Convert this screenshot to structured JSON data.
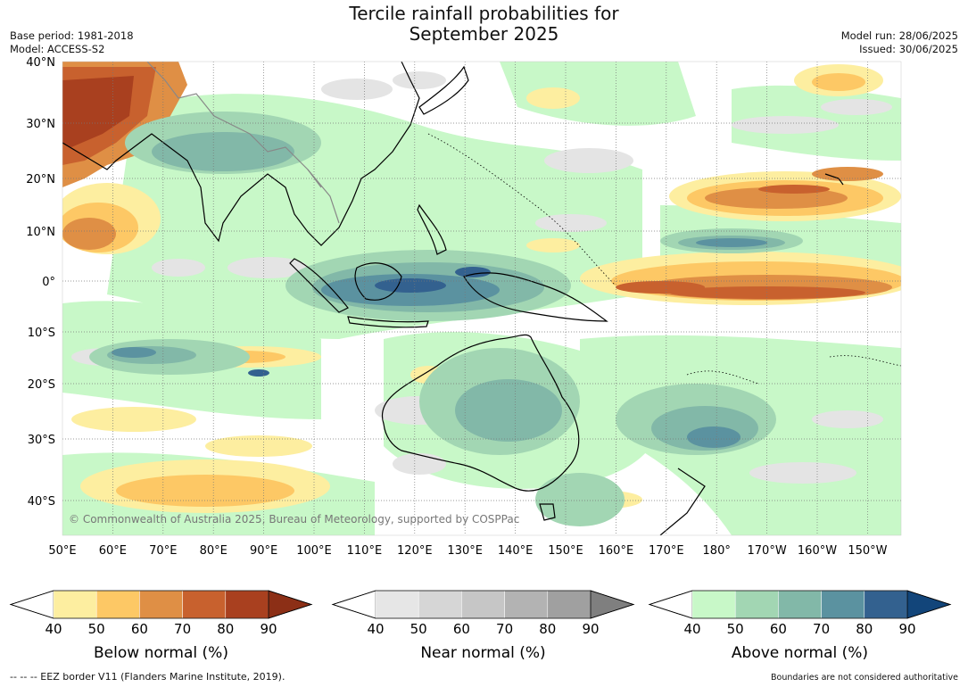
{
  "title_line1": "Tercile rainfall probabilities for",
  "title_line2": "September 2025",
  "base_period": "Base period: 1981-2018",
  "model": "Model: ACCESS-S2",
  "model_run": "Model run: 28/06/2025",
  "issued": "Issued: 30/06/2025",
  "copyright": "© Commonwealth of Australia 2025, Bureau of Meteorology, supported by COSPPac",
  "lat_labels": [
    "40°N",
    "30°N",
    "20°N",
    "10°N",
    "0°",
    "10°S",
    "20°S",
    "30°S",
    "40°S"
  ],
  "lon_labels": [
    "50°E",
    "60°E",
    "70°E",
    "80°E",
    "90°E",
    "100°E",
    "110°E",
    "120°E",
    "130°E",
    "140°E",
    "150°E",
    "160°E",
    "170°E",
    "180°",
    "170°W",
    "160°W",
    "150°W"
  ],
  "colorbars": [
    {
      "title": "Below normal (%)",
      "ticks": [
        "40",
        "50",
        "60",
        "70",
        "80",
        "90"
      ],
      "colors": [
        "#fdeea0",
        "#fdc865",
        "#df8f45",
        "#c8612e",
        "#a9401f"
      ],
      "extend_color": "#8c2f16"
    },
    {
      "title": "Near normal (%)",
      "ticks": [
        "40",
        "50",
        "60",
        "70",
        "80",
        "90"
      ],
      "colors": [
        "#e6e6e6",
        "#d6d6d6",
        "#c6c6c6",
        "#b3b3b3",
        "#a0a0a0"
      ],
      "extend_color": "#7f7f7f"
    },
    {
      "title": "Above normal (%)",
      "ticks": [
        "40",
        "50",
        "60",
        "70",
        "80",
        "90"
      ],
      "colors": [
        "#c8f8c8",
        "#a2d6b3",
        "#82b8a8",
        "#5b92a0",
        "#33618f"
      ],
      "extend_color": "#12457a"
    }
  ],
  "footer_left": "--  --  -- EEZ border V11 (Flanders Marine Institute, 2019).",
  "footer_right": "Boundaries are not considered authoritative"
}
